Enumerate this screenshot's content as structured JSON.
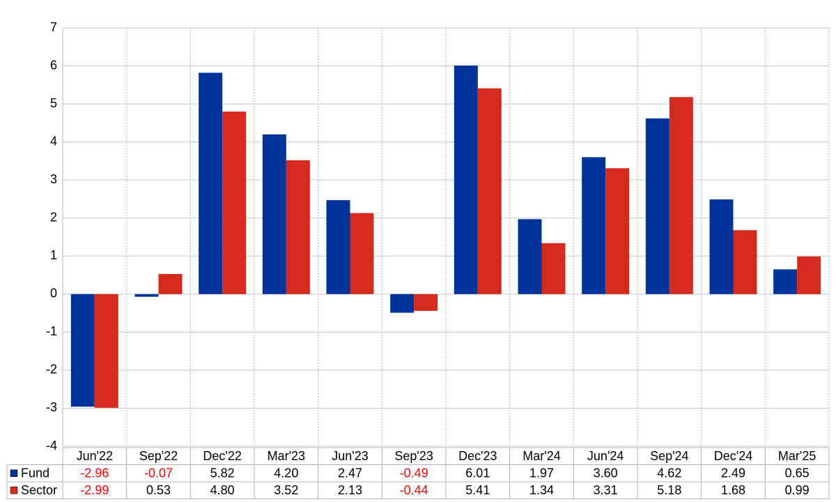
{
  "chart_data": {
    "type": "bar",
    "categories": [
      "Jun'22",
      "Sep'22",
      "Dec'22",
      "Mar'23",
      "Jun'23",
      "Sep'23",
      "Dec'23",
      "Mar'24",
      "Jun'24",
      "Sep'24",
      "Dec'24",
      "Mar'25"
    ],
    "series": [
      {
        "name": "Fund",
        "color": "#003399",
        "values": [
          -2.96,
          -0.07,
          5.82,
          4.2,
          2.47,
          -0.49,
          6.01,
          1.97,
          3.6,
          4.62,
          2.49,
          0.65
        ],
        "value_labels": [
          "-2.96",
          "-0.07",
          "5.82",
          "4.20",
          "2.47",
          "-0.49",
          "6.01",
          "1.97",
          "3.60",
          "4.62",
          "2.49",
          "0.65"
        ]
      },
      {
        "name": "Sector",
        "color": "#d52b1e",
        "values": [
          -2.99,
          0.53,
          4.8,
          3.52,
          2.13,
          -0.44,
          5.41,
          1.34,
          3.31,
          5.18,
          1.68,
          0.99
        ],
        "value_labels": [
          "-2.99",
          "0.53",
          "4.80",
          "3.52",
          "2.13",
          "-0.44",
          "5.41",
          "1.34",
          "3.31",
          "5.18",
          "1.68",
          "0.99"
        ]
      }
    ],
    "ylim": [
      -4,
      7
    ],
    "yticks": [
      -4,
      -3,
      -2,
      -1,
      0,
      1,
      2,
      3,
      4,
      5,
      6,
      7
    ],
    "grid": true,
    "negative_label_color": "#ff0000"
  }
}
